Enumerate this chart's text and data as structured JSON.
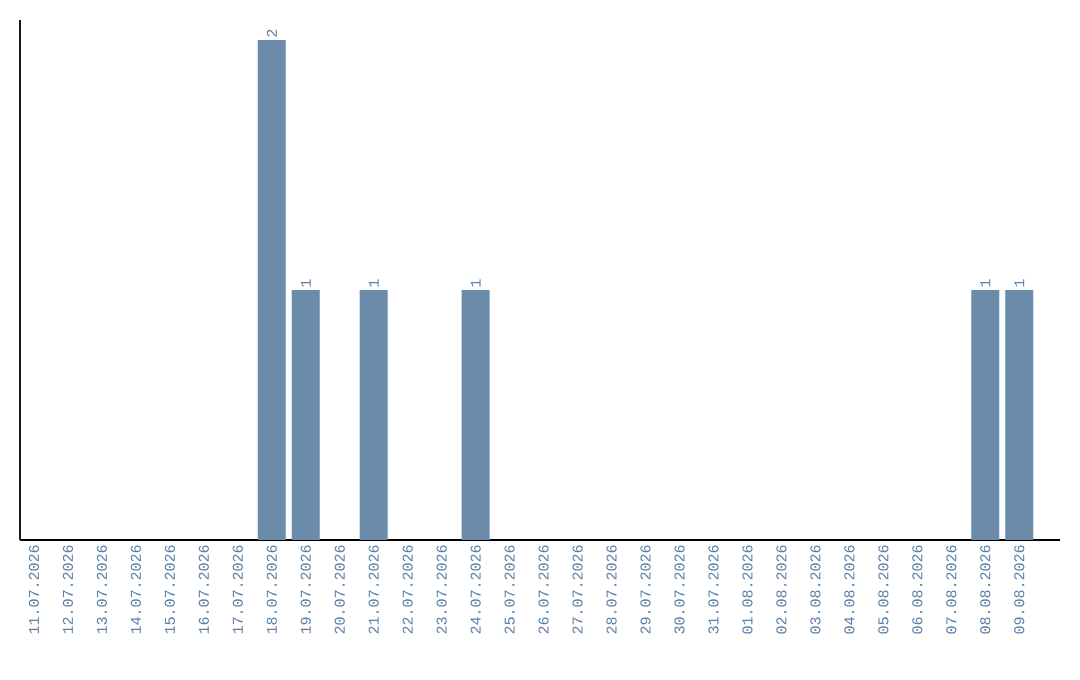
{
  "chart_data": {
    "type": "bar",
    "categories": [
      "11.07.2026",
      "12.07.2026",
      "13.07.2026",
      "14.07.2026",
      "15.07.2026",
      "16.07.2026",
      "17.07.2026",
      "18.07.2026",
      "19.07.2026",
      "20.07.2026",
      "21.07.2026",
      "22.07.2026",
      "23.07.2026",
      "24.07.2026",
      "25.07.2026",
      "26.07.2026",
      "27.07.2026",
      "28.07.2026",
      "29.07.2026",
      "30.07.2026",
      "31.07.2026",
      "01.08.2026",
      "02.08.2026",
      "03.08.2026",
      "04.08.2026",
      "05.08.2026",
      "06.08.2026",
      "07.08.2026",
      "08.08.2026",
      "09.08.2026"
    ],
    "values": [
      0,
      0,
      0,
      0,
      0,
      0,
      0,
      2,
      1,
      0,
      1,
      0,
      0,
      1,
      0,
      0,
      0,
      0,
      0,
      0,
      0,
      0,
      0,
      0,
      0,
      0,
      0,
      0,
      1,
      1
    ],
    "value_labels": [
      null,
      null,
      null,
      null,
      null,
      null,
      null,
      "2",
      "1",
      null,
      "1",
      null,
      null,
      "1",
      null,
      null,
      null,
      null,
      null,
      null,
      null,
      null,
      null,
      null,
      null,
      null,
      null,
      null,
      "1",
      "1"
    ],
    "color": "#6a8caa",
    "tick_labels": "x"
  }
}
